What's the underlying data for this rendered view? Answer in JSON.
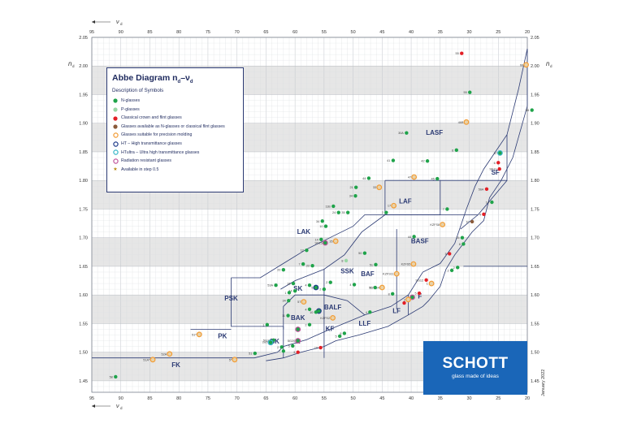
{
  "title_main": "Abbe Diagram n",
  "title_sub1": "d",
  "title_dash": "–ν",
  "title_sub2": "d",
  "axis": {
    "x_label": "ν",
    "x_label_sub": "d",
    "y_label": "n",
    "y_label_sub": "d",
    "x_min": 20,
    "x_max": 95,
    "y_min": 1.43,
    "y_max": 2.05,
    "x_ticks": [
      "95",
      "90",
      "85",
      "80",
      "75",
      "70",
      "65",
      "60",
      "55",
      "50",
      "45",
      "40",
      "35",
      "30",
      "25",
      "20"
    ],
    "y_ticks": [
      "2.05",
      "2.00",
      "1.95",
      "1.90",
      "1.85",
      "1.80",
      "1.75",
      "1.70",
      "1.65",
      "1.60",
      "1.55",
      "1.50",
      "1.45"
    ]
  },
  "legend": {
    "subtitle": "Description of Symbols",
    "items": [
      {
        "label": "N-glasses",
        "symbol": "dot",
        "color": "#1fa34a"
      },
      {
        "label": "P-glasses",
        "symbol": "dot",
        "color": "#9ad7a5"
      },
      {
        "label": "Classical crown and flint glasses",
        "symbol": "dot",
        "color": "#e31f26"
      },
      {
        "label": "Glasses available as N-glasses or classical flint glasses",
        "symbol": "dot",
        "color": "#8a5a3a"
      },
      {
        "label": "Glasses suitable for precision molding",
        "symbol": "ring",
        "color": "#f39c34"
      },
      {
        "label": "HT – High transmittance glasses",
        "symbol": "ring",
        "color": "#1e3a8a"
      },
      {
        "label": "HTultra – Ultra high transmittance glasses",
        "symbol": "ring",
        "color": "#36b6c8"
      },
      {
        "label": "Radiation resistant glasses",
        "symbol": "ring",
        "color": "#c0559c"
      },
      {
        "label": "Available in step 0.5",
        "symbol": "star",
        "color": "#b8860b"
      }
    ]
  },
  "logo": {
    "name": "SCHOTT",
    "tagline": "glass made of ideas"
  },
  "date": "January 2022",
  "regions": [
    {
      "label": "LASF",
      "x": 36,
      "y": 1.88
    },
    {
      "label": "SF",
      "x": 25.5,
      "y": 1.81
    },
    {
      "label": "LAF",
      "x": 41,
      "y": 1.76
    },
    {
      "label": "LAK",
      "x": 58.5,
      "y": 1.707
    },
    {
      "label": "BASF",
      "x": 38.5,
      "y": 1.69
    },
    {
      "label": "SSK",
      "x": 51,
      "y": 1.638
    },
    {
      "label": "BAF",
      "x": 47.5,
      "y": 1.633
    },
    {
      "label": "SK",
      "x": 59.5,
      "y": 1.607
    },
    {
      "label": "PSK",
      "x": 71,
      "y": 1.59
    },
    {
      "label": "BALF",
      "x": 53.5,
      "y": 1.575
    },
    {
      "label": "LF",
      "x": 42.5,
      "y": 1.568
    },
    {
      "label": "F",
      "x": 38.5,
      "y": 1.594
    },
    {
      "label": "BAK",
      "x": 59.5,
      "y": 1.556
    },
    {
      "label": "LLF",
      "x": 48,
      "y": 1.546
    },
    {
      "label": "KF",
      "x": 54,
      "y": 1.537
    },
    {
      "label": "PK",
      "x": 72.5,
      "y": 1.524
    },
    {
      "label": "BK",
      "x": 63.5,
      "y": 1.515
    },
    {
      "label": "K",
      "x": 59.5,
      "y": 1.515
    },
    {
      "label": "FK",
      "x": 80.5,
      "y": 1.474
    }
  ],
  "points": [
    {
      "v": 31.3,
      "n": 2.022,
      "c": "#e31f26",
      "l": "55"
    },
    {
      "v": 20.2,
      "n": 2.002,
      "c": "#f39c34",
      "l": "68"
    },
    {
      "v": 29.9,
      "n": 1.954,
      "c": "#1fa34a",
      "l": "55"
    },
    {
      "v": 19.2,
      "n": 1.923,
      "c": "#1fa34a",
      "l": "66"
    },
    {
      "v": 30.5,
      "n": 1.902,
      "c": "#f39c34",
      "l": "46B"
    },
    {
      "v": 40.8,
      "n": 1.883,
      "c": "#1fa34a",
      "l": "30A"
    },
    {
      "v": 32.2,
      "n": 1.853,
      "c": "#1fa34a",
      "l": "6"
    },
    {
      "v": 24.7,
      "n": 1.848,
      "c": "#36b6c8",
      "l": "57"
    },
    {
      "v": 43.1,
      "n": 1.835,
      "c": "#1fa34a",
      "l": "41"
    },
    {
      "v": 37.2,
      "n": 1.834,
      "c": "#1fa34a",
      "l": "42"
    },
    {
      "v": 25.0,
      "n": 1.831,
      "c": "#e31f26",
      "l": "6"
    },
    {
      "v": 24.8,
      "n": 1.82,
      "c": "#e31f26",
      "l": "SF11"
    },
    {
      "v": 47.3,
      "n": 1.804,
      "c": "#1fa34a",
      "l": "44"
    },
    {
      "v": 39.5,
      "n": 1.806,
      "c": "#f39c34",
      "l": "47"
    },
    {
      "v": 35.5,
      "n": 1.803,
      "c": "#1fa34a",
      "l": "45"
    },
    {
      "v": 49.5,
      "n": 1.788,
      "c": "#1fa34a",
      "l": "21"
    },
    {
      "v": 45.5,
      "n": 1.788,
      "c": "#f39c34",
      "l": "33"
    },
    {
      "v": 27.0,
      "n": 1.785,
      "c": "#e31f26",
      "l": "56A"
    },
    {
      "v": 49.6,
      "n": 1.773,
      "c": "#1fa34a",
      "l": "34"
    },
    {
      "v": 26.1,
      "n": 1.762,
      "c": "#1fa34a",
      "l": "14"
    },
    {
      "v": 43.0,
      "n": 1.756,
      "c": "#f39c34",
      "l": "17"
    },
    {
      "v": 33.8,
      "n": 1.75,
      "c": "#1fa34a",
      "l": "7"
    },
    {
      "v": 53.4,
      "n": 1.755,
      "c": "#1fa34a",
      "l": "11B"
    },
    {
      "v": 50.9,
      "n": 1.744,
      "c": "#1fa34a",
      "l": "35"
    },
    {
      "v": 52.5,
      "n": 1.744,
      "c": "#1fa34a",
      "l": "24"
    },
    {
      "v": 44.3,
      "n": 1.744,
      "c": "#1fa34a",
      "l": "2"
    },
    {
      "v": 27.5,
      "n": 1.741,
      "c": "#e31f26",
      "l": "4"
    },
    {
      "v": 55.3,
      "n": 1.729,
      "c": "#1fa34a",
      "l": "34"
    },
    {
      "v": 29.5,
      "n": 1.728,
      "c": "#8a5a3a",
      "l": "10"
    },
    {
      "v": 54.7,
      "n": 1.72,
      "c": "#1fa34a",
      "l": "10"
    },
    {
      "v": 34.6,
      "n": 1.723,
      "c": "#f39c34",
      "l": "KZFS8"
    },
    {
      "v": 39.5,
      "n": 1.702,
      "c": "#1fa34a",
      "l": "44"
    },
    {
      "v": 31.2,
      "n": 1.7,
      "c": "#1fa34a",
      "l": "15"
    },
    {
      "v": 55.5,
      "n": 1.697,
      "c": "#1fa34a",
      "l": "14"
    },
    {
      "v": 53.0,
      "n": 1.694,
      "c": "#f39c34",
      "l": "35"
    },
    {
      "v": 54.8,
      "n": 1.691,
      "c": "#c0559c",
      "l": "9G15"
    },
    {
      "v": 31.0,
      "n": 1.689,
      "c": "#1fa34a",
      "l": "8"
    },
    {
      "v": 58.0,
      "n": 1.678,
      "c": "#1fa34a",
      "l": "12"
    },
    {
      "v": 48.0,
      "n": 1.673,
      "c": "#1fa34a",
      "l": "50"
    },
    {
      "v": 33.4,
      "n": 1.672,
      "c": "#e31f26",
      "l": "5"
    },
    {
      "v": 58.6,
      "n": 1.654,
      "c": "#1fa34a",
      "l": "7"
    },
    {
      "v": 57.0,
      "n": 1.651,
      "c": "#1fa34a",
      "l": "22"
    },
    {
      "v": 46.1,
      "n": 1.653,
      "c": "#1fa34a",
      "l": "51"
    },
    {
      "v": 39.6,
      "n": 1.654,
      "c": "#f39c34",
      "l": "KZFS5"
    },
    {
      "v": 51.2,
      "n": 1.66,
      "c": "#9ad7a5",
      "l": "8"
    },
    {
      "v": 32.0,
      "n": 1.648,
      "c": "#1fa34a",
      "l": "2"
    },
    {
      "v": 62.0,
      "n": 1.644,
      "c": "#1fa34a",
      "l": "20"
    },
    {
      "v": 42.5,
      "n": 1.637,
      "c": "#f39c34",
      "l": "KZFS11"
    },
    {
      "v": 33.0,
      "n": 1.643,
      "c": "#1fa34a",
      "l": "2"
    },
    {
      "v": 53.9,
      "n": 1.622,
      "c": "#1fa34a",
      "l": "2"
    },
    {
      "v": 49.8,
      "n": 1.618,
      "c": "#1fa34a",
      "l": "4"
    },
    {
      "v": 63.3,
      "n": 1.617,
      "c": "#1fa34a",
      "l": "53A"
    },
    {
      "v": 60.3,
      "n": 1.62,
      "c": "#1fa34a",
      "l": "16"
    },
    {
      "v": 57.5,
      "n": 1.617,
      "c": "#1fa34a",
      "l": "4"
    },
    {
      "v": 56.4,
      "n": 1.613,
      "c": "#1e3a8a",
      "l": "5"
    },
    {
      "v": 45.0,
      "n": 1.613,
      "c": "#f39c34",
      "l": "KZFS4"
    },
    {
      "v": 46.2,
      "n": 1.613,
      "c": "#1fa34a",
      "l": "52"
    },
    {
      "v": 36.6,
      "n": 1.62,
      "c": "#e31f26",
      "l": "1"
    },
    {
      "v": 55.0,
      "n": 1.61,
      "c": "#1fa34a",
      "l": "2"
    },
    {
      "v": 37.4,
      "n": 1.626,
      "c": "#e31f26",
      "l": "SG12"
    },
    {
      "v": 36.5,
      "n": 1.62,
      "c": "#f39c34",
      "l": ""
    },
    {
      "v": 60.0,
      "n": 1.607,
      "c": "#1fa34a",
      "l": "14"
    },
    {
      "v": 61.0,
      "n": 1.604,
      "c": "#1fa34a",
      "l": "1"
    },
    {
      "v": 38.6,
      "n": 1.603,
      "c": "#e31f26",
      "l": "5"
    },
    {
      "v": 58.5,
      "n": 1.588,
      "c": "#f39c34",
      "l": "57"
    },
    {
      "v": 39.8,
      "n": 1.596,
      "c": "#c0559c",
      "l": ""
    },
    {
      "v": 40.5,
      "n": 1.592,
      "c": "#f39c34",
      "l": "2"
    },
    {
      "v": 43.2,
      "n": 1.602,
      "c": "#1fa34a",
      "l": "8"
    },
    {
      "v": 61.1,
      "n": 1.59,
      "c": "#1fa34a",
      "l": "34"
    },
    {
      "v": 41.2,
      "n": 1.586,
      "c": "#e31f26",
      "l": ""
    },
    {
      "v": 57.5,
      "n": 1.575,
      "c": "#1fa34a",
      "l": "4"
    },
    {
      "v": 55.9,
      "n": 1.572,
      "c": "#1e3a8a",
      "l": ""
    },
    {
      "v": 61.2,
      "n": 1.564,
      "c": "#1fa34a",
      "l": "11"
    },
    {
      "v": 56.4,
      "n": 1.57,
      "c": "#1fa34a",
      "l": "10"
    },
    {
      "v": 53.5,
      "n": 1.56,
      "c": "#f39c34",
      "l": "KZFS2"
    },
    {
      "v": 47.1,
      "n": 1.57,
      "c": "#1fa34a",
      "l": "4"
    },
    {
      "v": 64.8,
      "n": 1.548,
      "c": "#1fa34a",
      "l": "1"
    },
    {
      "v": 57.5,
      "n": 1.548,
      "c": "#1fa34a",
      "l": "2"
    },
    {
      "v": 59.5,
      "n": 1.54,
      "c": "#c0559c",
      "l": ""
    },
    {
      "v": 52.3,
      "n": 1.528,
      "c": "#1fa34a",
      "l": "5"
    },
    {
      "v": 51.5,
      "n": 1.533,
      "c": "#1fa34a",
      "l": "9"
    },
    {
      "v": 59.5,
      "n": 1.52,
      "c": "#c0559c",
      "l": "5G20"
    },
    {
      "v": 63.7,
      "n": 1.521,
      "c": "#1fa34a",
      "l": "5G18"
    },
    {
      "v": 64.2,
      "n": 1.517,
      "c": "#1e3a8a",
      "l": "7HT"
    },
    {
      "v": 64.2,
      "n": 1.517,
      "c": "#36b6c8",
      "l": ""
    },
    {
      "v": 60.4,
      "n": 1.511,
      "c": "#1fa34a",
      "l": "5"
    },
    {
      "v": 62.3,
      "n": 1.509,
      "c": "#1fa34a",
      "l": "2"
    },
    {
      "v": 55.6,
      "n": 1.508,
      "c": "#e31f26",
      "l": "10"
    },
    {
      "v": 59.5,
      "n": 1.5,
      "c": "#e31f26",
      "l": "3"
    },
    {
      "v": 62.0,
      "n": 1.502,
      "c": "#1fa34a",
      "l": "7"
    },
    {
      "v": 66.9,
      "n": 1.498,
      "c": "#1fa34a",
      "l": "51"
    },
    {
      "v": 76.5,
      "n": 1.531,
      "c": "#f39c34",
      "l": "51*"
    },
    {
      "v": 81.6,
      "n": 1.497,
      "c": "#f39c34",
      "l": "52A"
    },
    {
      "v": 84.5,
      "n": 1.487,
      "c": "#f39c34",
      "l": "51A*"
    },
    {
      "v": 70.4,
      "n": 1.487,
      "c": "#f39c34",
      "l": "5*"
    },
    {
      "v": 90.9,
      "n": 1.457,
      "c": "#1fa34a",
      "l": "58"
    }
  ]
}
